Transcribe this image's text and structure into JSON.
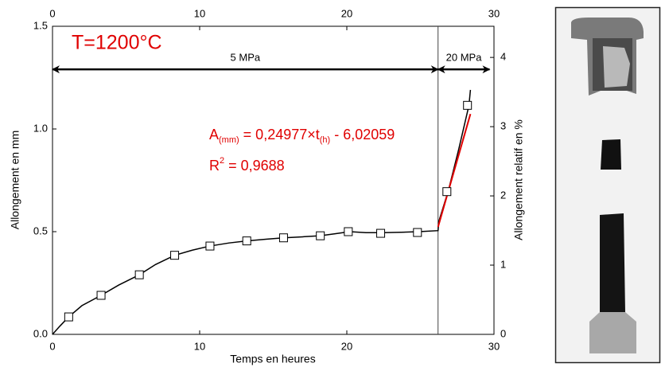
{
  "chart_data": {
    "type": "line",
    "xlabel": "Temps en heures",
    "ylabel": "Allongement en mm",
    "y2label": "Allongement relatif en %",
    "xlim": [
      0,
      30
    ],
    "xticks": [
      0,
      10,
      20,
      30
    ],
    "ylim": [
      0,
      1.5
    ],
    "yticks": [
      {
        "value": 0,
        "label": "0.0"
      },
      {
        "value": 0.5,
        "label": "0.5"
      },
      {
        "value": 1,
        "label": "1.0"
      },
      {
        "value": 1.5,
        "label": "1.5"
      }
    ],
    "y2lim": [
      0,
      4.45
    ],
    "y2ticks": [
      0,
      1,
      2,
      3,
      4
    ],
    "series": [
      {
        "color": "#000000",
        "marker": "none",
        "x": [
          0,
          0.5,
          1.1,
          2,
          3.3,
          4.5,
          5.9,
          7,
          8.3,
          9.5,
          10.7,
          12,
          13.2,
          14.5,
          15.7,
          17,
          18.2,
          19.2,
          20.2,
          21.3,
          22.5,
          23.7,
          24.9,
          26.2,
          26.25,
          26.9,
          27.6,
          28.3,
          28.4
        ],
        "values": [
          0,
          0.04,
          0.085,
          0.14,
          0.19,
          0.24,
          0.29,
          0.34,
          0.385,
          0.41,
          0.43,
          0.445,
          0.455,
          0.463,
          0.47,
          0.475,
          0.48,
          0.49,
          0.5,
          0.495,
          0.495,
          0.497,
          0.5,
          0.505,
          0.55,
          0.7,
          0.9,
          1.115,
          1.19
        ]
      },
      {
        "color": "#000000",
        "marker": "square",
        "x": [
          1.1,
          3.3,
          5.9,
          8.3,
          10.7,
          13.2,
          15.7,
          18.2,
          20.1,
          22.3,
          24.8,
          26.8,
          28.2
        ],
        "values": [
          0.085,
          0.19,
          0.29,
          0.385,
          0.43,
          0.455,
          0.47,
          0.48,
          0.5,
          0.492,
          0.496,
          0.695,
          1.115
        ]
      },
      {
        "color": "#e00000",
        "marker": "none",
        "x": [
          26.2,
          28.4
        ],
        "values": [
          0.523,
          1.073
        ]
      }
    ],
    "vline": 26.2,
    "title": "T=1200°C",
    "title_color": "#e00000",
    "arrows": [
      {
        "label": "5 MPa",
        "x": [
          0,
          26.2
        ],
        "y": 1.29
      },
      {
        "label": "20 MPa",
        "x": [
          26.2,
          29.7
        ],
        "y": 1.29
      }
    ],
    "formula": {
      "color": "#e00000",
      "parts": [
        "A",
        "(mm)",
        " = 0,24977×t",
        "(h)",
        " - 6,02059"
      ]
    },
    "r2": {
      "parts": [
        "R",
        "2",
        " = 0,9688"
      ]
    }
  }
}
